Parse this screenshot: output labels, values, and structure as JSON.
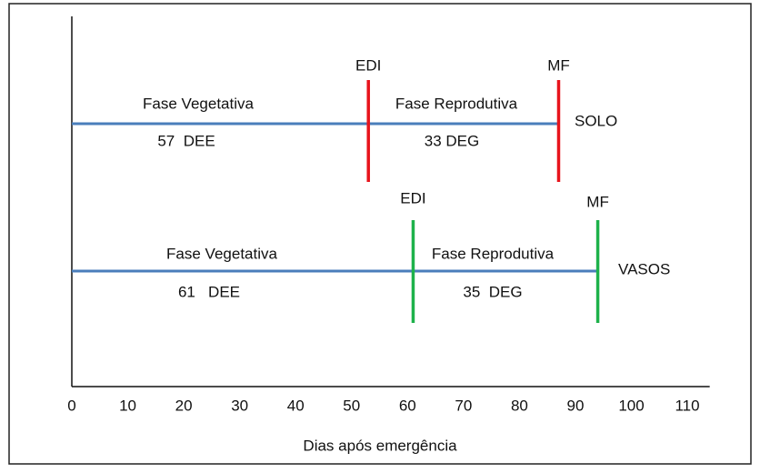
{
  "chart_data": {
    "type": "timeline",
    "x_label": "Dias após emergência",
    "xlim": [
      0,
      114
    ],
    "xticks": [
      0,
      10,
      20,
      30,
      40,
      50,
      60,
      70,
      80,
      90,
      100,
      110
    ],
    "line_color": "#4a7ebb",
    "rows": [
      {
        "name": "SOLO",
        "color": "#e8141c",
        "markers": [
          {
            "label": "EDI",
            "x": 53
          },
          {
            "label": "MF",
            "x": 87
          }
        ],
        "phases": [
          {
            "label": "Fase Vegetativa",
            "duration": "57  DEE"
          },
          {
            "label": "Fase Reprodutiva",
            "duration": "33 DEG"
          }
        ]
      },
      {
        "name": "VASOS",
        "color": "#1eb24b",
        "markers": [
          {
            "label": "EDI",
            "x": 61
          },
          {
            "label": "MF",
            "x": 94
          }
        ],
        "phases": [
          {
            "label": "Fase Vegetativa",
            "duration": "61   DEE"
          },
          {
            "label": "Fase Reprodutiva",
            "duration": "35  DEG"
          }
        ]
      }
    ]
  }
}
